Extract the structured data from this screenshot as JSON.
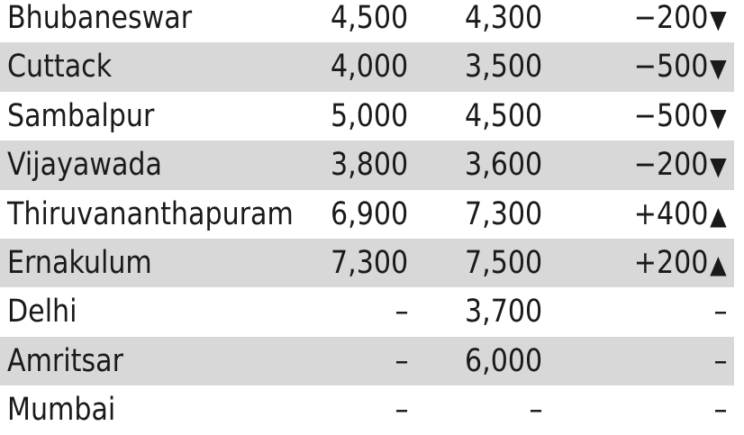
{
  "rows": [
    {
      "city": "Bhubaneswar",
      "before": "4,500",
      "after": "4,300",
      "change": "−200",
      "trend": "▼",
      "trend_icon": "down-triangle-icon"
    },
    {
      "city": "Cuttack",
      "before": "4,000",
      "after": "3,500",
      "change": "−500",
      "trend": "▼",
      "trend_icon": "down-triangle-icon"
    },
    {
      "city": "Sambalpur",
      "before": "5,000",
      "after": "4,500",
      "change": "−500",
      "trend": "▼",
      "trend_icon": "down-triangle-icon"
    },
    {
      "city": "Vijayawada",
      "before": "3,800",
      "after": "3,600",
      "change": "−200",
      "trend": "▼",
      "trend_icon": "down-triangle-icon"
    },
    {
      "city": "Thiruvananthapuram",
      "before": "6,900",
      "after": "7,300",
      "change": "+400",
      "trend": "▲",
      "trend_icon": "up-triangle-icon"
    },
    {
      "city": "Ernakulum",
      "before": "7,300",
      "after": "7,500",
      "change": "+200",
      "trend": "▲",
      "trend_icon": "up-triangle-icon"
    },
    {
      "city": "Delhi",
      "before": "–",
      "after": "3,700",
      "change": "–",
      "trend": "",
      "trend_icon": ""
    },
    {
      "city": "Amritsar",
      "before": "–",
      "after": "6,000",
      "change": "–",
      "trend": "",
      "trend_icon": ""
    },
    {
      "city": "Mumbai",
      "before": "–",
      "after": "–",
      "change": "–",
      "trend": "",
      "trend_icon": ""
    }
  ],
  "colors": {
    "row_shade": "#d8d8d8",
    "text": "#1a1a1a"
  }
}
